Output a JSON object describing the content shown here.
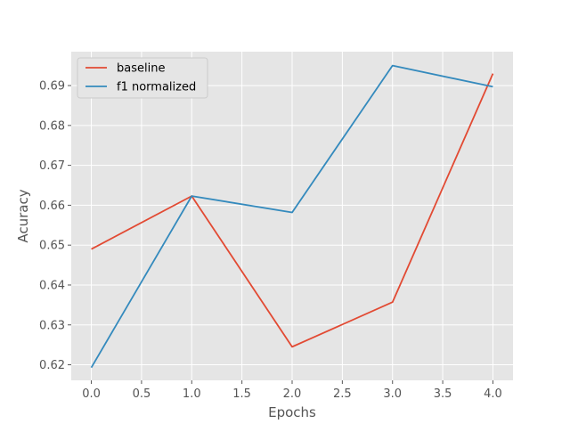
{
  "chart_data": {
    "type": "line",
    "title": "",
    "xlabel": "Epochs",
    "ylabel": "Acuracy",
    "x": [
      0,
      1,
      2,
      3,
      4
    ],
    "series": [
      {
        "name": "baseline",
        "color": "#E24A33",
        "values": [
          0.649,
          0.6623,
          0.6245,
          0.6357,
          0.693
        ]
      },
      {
        "name": "f1 normalized",
        "color": "#348ABD",
        "values": [
          0.6193,
          0.6623,
          0.6582,
          0.695,
          0.6897
        ]
      }
    ],
    "xlim": [
      -0.2,
      4.2
    ],
    "ylim": [
      0.6161,
      0.6985
    ],
    "xticks": [
      "0.0",
      "0.5",
      "1.0",
      "1.5",
      "2.0",
      "2.5",
      "3.0",
      "3.5",
      "4.0"
    ],
    "yticks": [
      "0.62",
      "0.63",
      "0.64",
      "0.65",
      "0.66",
      "0.67",
      "0.68",
      "0.69"
    ],
    "grid": true,
    "legend_position": "top-left",
    "plot_background": "#E5E5E5",
    "grid_color": "#FFFFFF"
  }
}
